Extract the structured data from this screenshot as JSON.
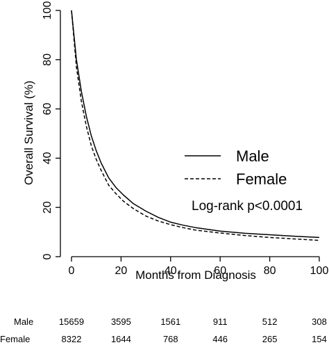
{
  "chart_data": {
    "type": "line",
    "xlabel": "Months from Diagnosis",
    "ylabel": "Overall Survival (%)",
    "xlim": [
      0,
      100
    ],
    "ylim": [
      0,
      100
    ],
    "xticks": [
      0,
      20,
      40,
      60,
      80,
      100
    ],
    "yticks": [
      0,
      20,
      40,
      60,
      80,
      100
    ],
    "xtick_labels": [
      "0",
      "20",
      "40",
      "60",
      "80",
      "100"
    ],
    "ytick_labels": [
      "0",
      "20",
      "40",
      "60",
      "80",
      "100"
    ],
    "grid": false,
    "legend_position": "right",
    "series": [
      {
        "name": "Male",
        "line_style": "solid",
        "x": [
          0,
          2,
          4,
          6,
          8,
          10,
          12,
          15,
          18,
          21,
          25,
          30,
          35,
          40,
          45,
          50,
          60,
          70,
          80,
          90,
          100
        ],
        "y": [
          100,
          80,
          67,
          57,
          49,
          43,
          38,
          32,
          28,
          25,
          21.5,
          18.5,
          16,
          14,
          12.8,
          11.8,
          10.4,
          9.5,
          8.9,
          8.3,
          7.8
        ]
      },
      {
        "name": "Female",
        "line_style": "dashed",
        "x": [
          0,
          2,
          4,
          6,
          8,
          10,
          12,
          15,
          18,
          21,
          25,
          30,
          35,
          40,
          45,
          50,
          60,
          70,
          80,
          90,
          100
        ],
        "y": [
          100,
          77,
          63,
          53,
          45,
          39.5,
          35,
          29,
          25.5,
          22.5,
          19.5,
          16.5,
          14.5,
          13,
          11.8,
          10.8,
          9.6,
          8.6,
          7.8,
          7.2,
          6.6
        ]
      }
    ],
    "annotation": "Log-rank p<0.0001",
    "risk_table": {
      "x": [
        0,
        20,
        40,
        60,
        80,
        100
      ],
      "rows": [
        {
          "name": "Male",
          "values": [
            "15659",
            "3595",
            "1561",
            "911",
            "512",
            "308"
          ]
        },
        {
          "name": "Female",
          "values": [
            "8322",
            "1644",
            "768",
            "446",
            "265",
            "154"
          ]
        }
      ]
    }
  }
}
